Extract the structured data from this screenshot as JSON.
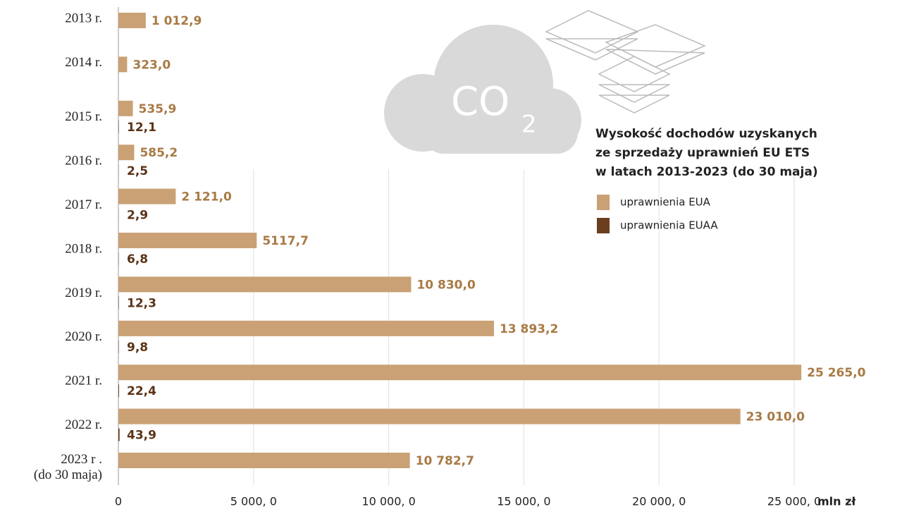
{
  "chart_data": {
    "type": "hbar",
    "title": "Wysokość dochodów uzyskanych\nze sprzedaży uprawnień EU ETS\nw latach 2013-2023 (do 30 maja)",
    "x_label": "mln zł",
    "annotations": [
      "CO",
      "2"
    ],
    "categories": [
      "2013 r.",
      "2014 r.",
      "2015 r.",
      "2016 r.",
      "2017 r.",
      "2018 r.",
      "2019 r.",
      "2020 r.",
      "2021 r.",
      "2022 r.",
      "2023 r .\n(do 30 maja)"
    ],
    "series": [
      {
        "name": "uprawnienia EUA",
        "color": "#c9a174",
        "label_color": "#a87a45",
        "values": [
          1012.9,
          323.0,
          535.9,
          585.2,
          2121.0,
          5117.7,
          10830.0,
          13893.2,
          25265.0,
          23010.0,
          10782.7
        ],
        "value_labels": [
          "1 012,9",
          "323,0",
          "535,9",
          "585,2",
          "2 121,0",
          "5117,7",
          "10 830,0",
          "13 893,2",
          "25 265,0",
          "23 010,0",
          "10 782,7"
        ]
      },
      {
        "name": "uprawnienia EUAA",
        "color": "#6b3e1e",
        "label_color": "#5a3318",
        "values": [
          null,
          null,
          12.1,
          2.5,
          2.9,
          6.8,
          12.3,
          9.8,
          22.4,
          43.9,
          null
        ],
        "value_labels": [
          null,
          null,
          "12,1",
          "2,5",
          "2,9",
          "6,8",
          "12,3",
          "9,8",
          "22,4",
          "43,9",
          null
        ]
      }
    ],
    "xlim": [
      0,
      25000
    ],
    "xticks": [
      0,
      {
        "value": 5000,
        "label": "5 000, 0"
      },
      {
        "value": 10000,
        "label": "10 000, 0"
      },
      {
        "value": 15000,
        "label": "15 000, 0"
      },
      {
        "value": 20000,
        "label": "20 000, 0"
      },
      {
        "value": 25000,
        "label": "25 000, 0"
      }
    ],
    "grid": true
  }
}
